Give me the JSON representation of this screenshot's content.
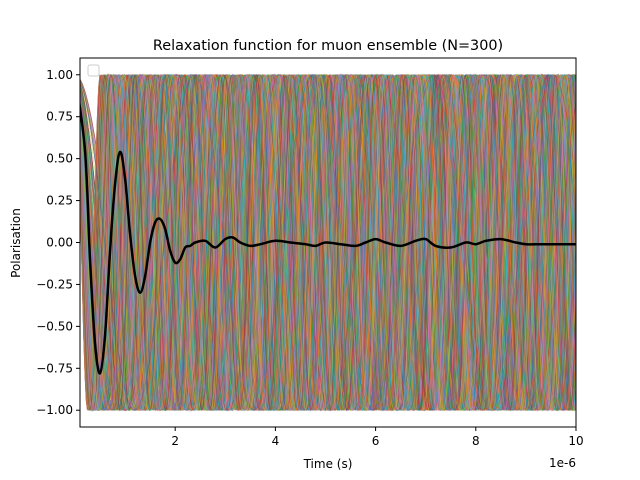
{
  "chart_data": {
    "type": "line",
    "title": "Relaxation function for muon ensemble (N=300)",
    "xlabel": "Time (s)",
    "ylabel": "Polarisation",
    "x_offset_label": "1e-6",
    "xlim": [
      1e-07,
      1e-05
    ],
    "ylim": [
      -1.1,
      1.1
    ],
    "x_scale_factor": 1e-06,
    "x_ticks": [
      2,
      4,
      6,
      8,
      10
    ],
    "x_tick_labels": [
      "2",
      "4",
      "6",
      "8",
      "10"
    ],
    "y_ticks": [
      -1.0,
      -0.75,
      -0.5,
      -0.25,
      0.0,
      0.25,
      0.5,
      0.75,
      1.0
    ],
    "y_tick_labels": [
      "−1.00",
      "−0.75",
      "−0.50",
      "−0.25",
      "0.00",
      "0.25",
      "0.50",
      "0.75",
      "1.00"
    ],
    "grid": false,
    "legend": {
      "placement": "top-left",
      "entries": []
    },
    "ensemble": {
      "count": 300,
      "description_frequency_range_mhz": [
        0.35,
        2.0
      ],
      "line_opacity": 0.55,
      "colors": [
        "#1f77b4",
        "#ff7f0e",
        "#2ca02c",
        "#d62728",
        "#9467bd",
        "#8c564b",
        "#e377c2",
        "#7f7f7f",
        "#bcbd22",
        "#17becf"
      ]
    },
    "series": [
      {
        "name": "",
        "color": "#000000",
        "x": [
          0.0,
          0.2,
          0.3,
          0.4,
          0.5,
          0.6,
          0.7,
          0.8,
          0.9,
          1.0,
          1.1,
          1.2,
          1.3,
          1.4,
          1.5,
          1.6,
          1.7,
          1.8,
          1.9,
          2.0,
          2.1,
          2.2,
          2.3,
          2.4,
          2.6,
          2.8,
          3.0,
          3.15,
          3.3,
          3.5,
          3.7,
          4.0,
          4.3,
          4.6,
          4.8,
          5.0,
          5.3,
          5.6,
          5.8,
          6.0,
          6.2,
          6.5,
          6.8,
          7.0,
          7.2,
          7.5,
          7.8,
          8.0,
          8.2,
          8.5,
          8.8,
          9.0,
          9.3,
          9.6,
          10.0
        ],
        "y": [
          1.0,
          0.55,
          -0.1,
          -0.6,
          -0.78,
          -0.55,
          -0.05,
          0.35,
          0.54,
          0.38,
          0.05,
          -0.2,
          -0.3,
          -0.2,
          0.0,
          0.12,
          0.14,
          0.08,
          -0.05,
          -0.12,
          -0.1,
          -0.03,
          -0.02,
          0.0,
          0.01,
          -0.03,
          0.02,
          0.03,
          0.0,
          -0.02,
          -0.01,
          0.01,
          0.0,
          -0.01,
          -0.02,
          0.0,
          -0.01,
          -0.02,
          0.0,
          0.02,
          0.0,
          -0.02,
          0.01,
          0.02,
          -0.02,
          -0.03,
          0.0,
          -0.01,
          0.01,
          0.02,
          0.0,
          -0.01,
          -0.01,
          -0.01,
          -0.01
        ]
      }
    ]
  }
}
